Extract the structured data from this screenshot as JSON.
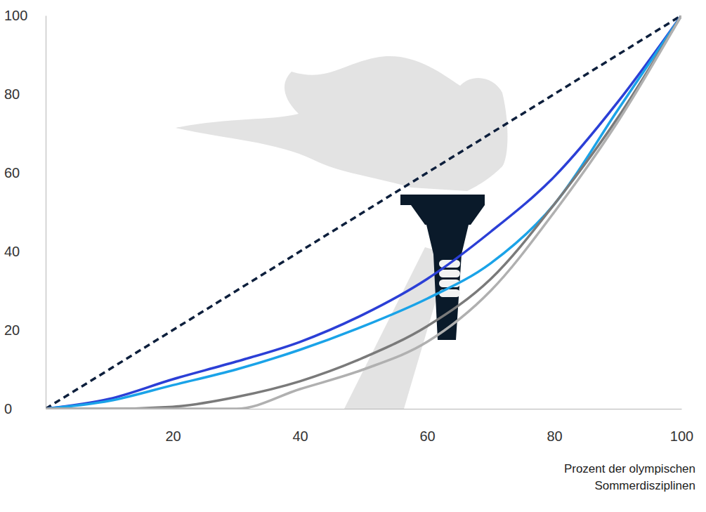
{
  "chart_data": {
    "type": "line",
    "x_label": "Prozent der olympischen Sommerdisziplinen",
    "x": [
      0,
      10,
      20,
      30,
      40,
      50,
      60,
      70,
      80,
      90,
      100
    ],
    "series": [
      {
        "color": "#0d1f3c",
        "line_style": "dashed",
        "values": [
          0,
          10,
          20,
          30,
          40,
          50,
          60,
          70,
          80,
          90,
          100
        ]
      },
      {
        "color": "#2b3fd6",
        "line_style": "solid",
        "values": [
          0,
          2.5,
          7.5,
          12,
          17,
          24,
          33,
          45,
          59,
          78,
          100
        ]
      },
      {
        "color": "#1aa3e8",
        "line_style": "solid",
        "values": [
          0,
          2,
          6,
          10,
          15,
          21,
          28,
          37,
          52,
          76,
          100
        ]
      },
      {
        "color": "#7a7a7a",
        "line_style": "solid",
        "values": [
          0,
          0,
          0.5,
          3,
          7,
          13,
          21,
          33,
          52,
          74,
          100
        ]
      },
      {
        "color": "#b0b0b0",
        "line_style": "solid",
        "values": [
          0,
          0,
          0,
          0,
          5,
          10,
          17,
          30,
          50,
          73,
          100
        ]
      }
    ],
    "xlim": [
      0,
      100
    ],
    "xticks": [
      20,
      40,
      60,
      80,
      100
    ],
    "ylim": [
      0,
      100
    ],
    "yticks": [
      0,
      20,
      40,
      60,
      80,
      100
    ],
    "grid": false
  }
}
